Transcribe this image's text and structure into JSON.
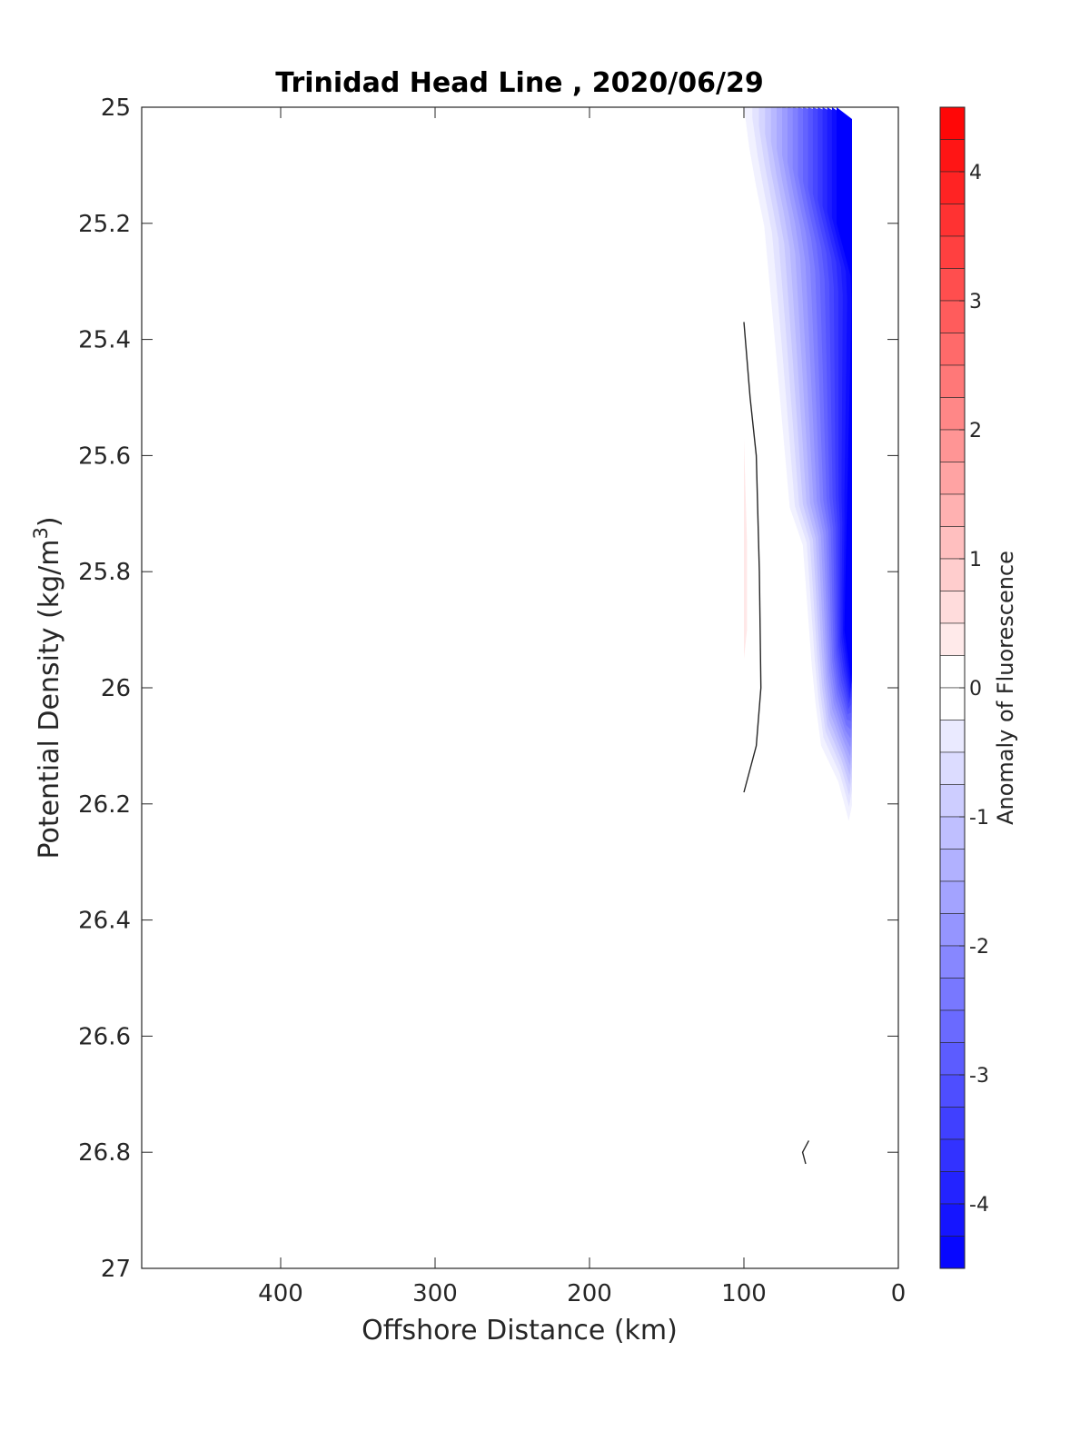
{
  "chart_data": {
    "type": "heatmap",
    "subtype": "filled-contour-section",
    "title": "Trinidad Head Line , 2020/06/29",
    "xlabel": "Offshore Distance (km)",
    "ylabel": "Potential Density (kg/m^3)",
    "ylabel_main": "Potential Density (kg/m",
    "ylabel_sup": "3",
    "ylabel_close": ")",
    "xlim": [
      490,
      0
    ],
    "x_reversed": true,
    "ylim": [
      25,
      27
    ],
    "y_reversed": true,
    "x_ticks": [
      400,
      300,
      200,
      100,
      0
    ],
    "x_tick_labels": [
      "400",
      "300",
      "200",
      "100",
      "0"
    ],
    "y_ticks": [
      25,
      25.2,
      25.4,
      25.6,
      25.8,
      26,
      26.2,
      26.4,
      26.6,
      26.8,
      27
    ],
    "y_tick_labels": [
      "25",
      "25.2",
      "25.4",
      "25.6",
      "25.8",
      "26",
      "26.2",
      "26.4",
      "26.6",
      "26.8",
      "27"
    ],
    "colorbar": {
      "label": "Anomaly of Fluorescence",
      "range": [
        -4.5,
        4.5
      ],
      "level_step": 0.25,
      "ticks": [
        4,
        3,
        2,
        1,
        0,
        -1,
        -2,
        -3,
        -4
      ],
      "tick_labels": [
        "4",
        "3",
        "2",
        "1",
        "0",
        "-1",
        "-2",
        "-3",
        "-4"
      ],
      "max_color": "#ff0000",
      "zero_color": "#ffffff",
      "min_color": "#0000ff"
    },
    "negative_anomaly_region": {
      "description_level_min": -4.5,
      "outer_boundary": [
        {
          "x": 100,
          "y": 25.0
        },
        {
          "x": 30,
          "y": 25.0
        },
        {
          "x": 30,
          "y": 26.25
        },
        {
          "x": 40,
          "y": 26.15
        },
        {
          "x": 50,
          "y": 26.1
        },
        {
          "x": 55,
          "y": 26.0
        },
        {
          "x": 62,
          "y": 25.75
        },
        {
          "x": 70,
          "y": 25.7
        },
        {
          "x": 80,
          "y": 25.4
        },
        {
          "x": 87,
          "y": 25.2
        },
        {
          "x": 95,
          "y": 25.1
        },
        {
          "x": 100,
          "y": 25.0
        }
      ],
      "core_boundary": [
        {
          "x": 40,
          "y": 25.0
        },
        {
          "x": 30,
          "y": 25.0
        },
        {
          "x": 30,
          "y": 26.0
        },
        {
          "x": 35,
          "y": 25.9
        },
        {
          "x": 30,
          "y": 25.3
        },
        {
          "x": 40,
          "y": 25.2
        }
      ]
    },
    "positive_anomaly_region": {
      "outer_boundary": [
        {
          "x": 100,
          "y": 25.57
        },
        {
          "x": 98,
          "y": 25.75
        },
        {
          "x": 98,
          "y": 25.9
        },
        {
          "x": 100,
          "y": 25.95
        }
      ]
    },
    "zero_contours": [
      [
        {
          "x": 100,
          "y": 25.37
        },
        {
          "x": 96,
          "y": 25.5
        },
        {
          "x": 92,
          "y": 25.6
        },
        {
          "x": 91,
          "y": 25.7
        },
        {
          "x": 90,
          "y": 25.8
        },
        {
          "x": 89,
          "y": 26.0
        },
        {
          "x": 92,
          "y": 26.1
        },
        {
          "x": 100,
          "y": 26.18
        }
      ],
      [
        {
          "x": 58,
          "y": 26.78
        },
        {
          "x": 62,
          "y": 26.8
        },
        {
          "x": 60,
          "y": 26.82
        }
      ]
    ]
  }
}
